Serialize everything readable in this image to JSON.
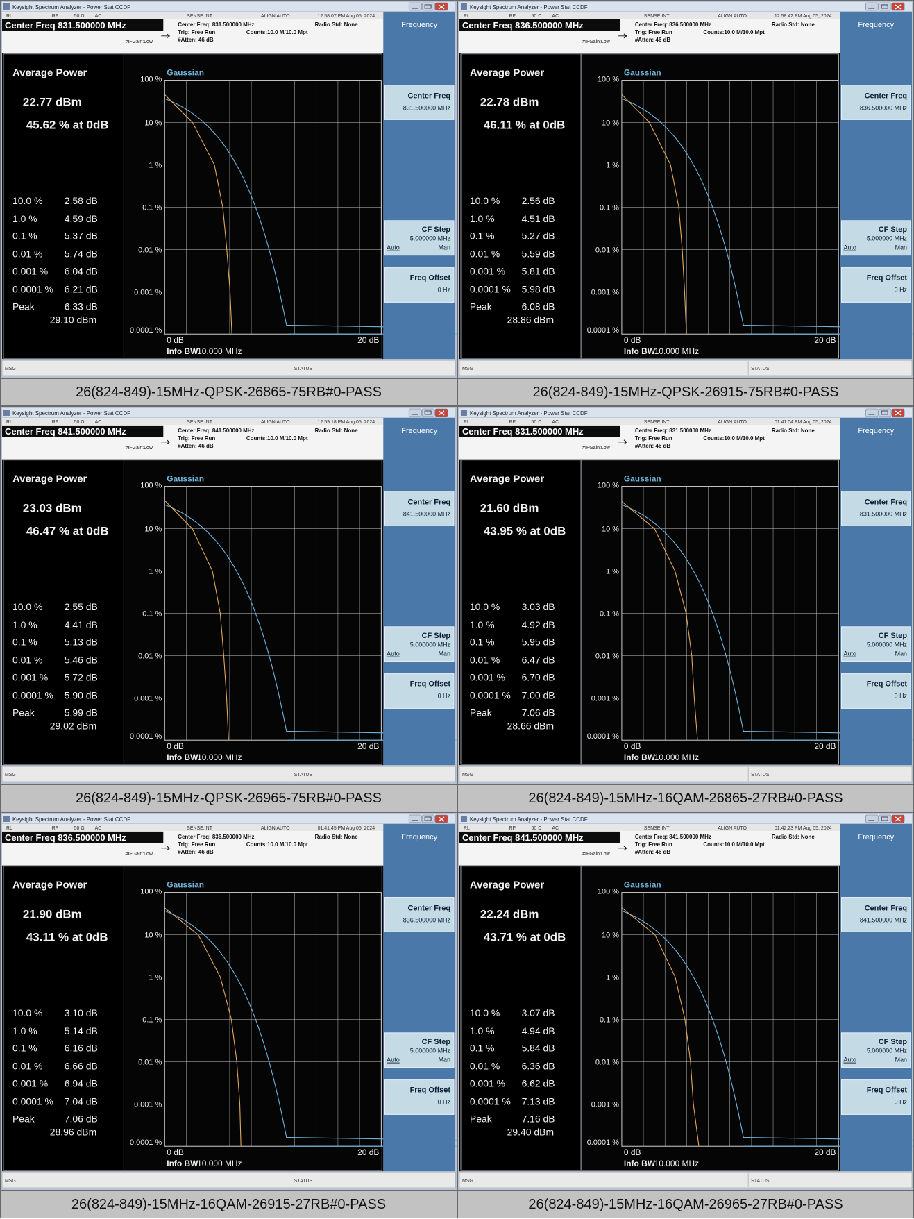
{
  "app": {
    "window_title": "Keysight Spectrum Analyzer - Power Stat CCDF",
    "rl": "RL",
    "rf": "RF",
    "imp": "50 Ω",
    "ac": "AC",
    "sense": "SENSE:INT",
    "align": "ALIGN AUTO",
    "radio_std": "Radio Std: None",
    "trig": "Trig: Free Run",
    "counts": "Counts:10.0 M/10.0 Mpt",
    "atten": "#Atten: 46 dB",
    "ifgain": "#IFGain:Low",
    "avg_power_label": "Average Power",
    "peak_label": "Peak",
    "gaussian_label": "Gaussian",
    "x_start": "0 dB",
    "x_end": "20 dB",
    "info_bw_label": "Info BW",
    "info_bw_value": "10.000 MHz",
    "msg": "MSG",
    "status": "STATUS",
    "y_ticks": [
      "100 %",
      "10 %",
      "1 %",
      "0.1 %",
      "0.01 %",
      "0.001 %",
      "0.0001 %"
    ],
    "prob_labels": [
      "10.0 %",
      "1.0 %",
      "0.1 %",
      "0.01 %",
      "0.001 %",
      "0.0001 %"
    ],
    "softkeys": {
      "menu_title": "Frequency",
      "center_freq": "Center Freq",
      "cf_step": "CF Step",
      "cf_step_value": "5.000000 MHz",
      "auto": "Auto",
      "man": "Man",
      "freq_offset": "Freq Offset",
      "freq_offset_value": "0 Hz"
    },
    "colors": {
      "screen_bg": "#050505",
      "gaussian": "#6fb4dc",
      "trace": "#e3a95a",
      "softkey_bg": "#4a78a8",
      "grid": "#c8c8c8"
    }
  },
  "panels": [
    {
      "center_freq": "831.500000 MHz",
      "center_freq_title": "Center Freq 831.500000 MHz",
      "center_freq_hdr": "Center Freq: 831.500000 MHz",
      "timestamp": "12:58:07 PM Aug 05, 2024",
      "avg_power": "22.77 dBm",
      "pct_at_0db": "45.62 % at 0dB",
      "stats": [
        "2.58 dB",
        "4.59 dB",
        "5.37 dB",
        "5.74 dB",
        "6.04 dB",
        "6.21 dB"
      ],
      "peak": "6.33 dB",
      "peak_dbm": "29.10 dBm",
      "caption": "26(824-849)-15MHz-QPSK-26865-75RB#0-PASS"
    },
    {
      "center_freq": "836.500000 MHz",
      "center_freq_title": "Center Freq 836.500000 MHz",
      "center_freq_hdr": "Center Freq: 836.500000 MHz",
      "timestamp": "12:58:42 PM Aug 05, 2024",
      "avg_power": "22.78 dBm",
      "pct_at_0db": "46.11 % at 0dB",
      "stats": [
        "2.56 dB",
        "4.51 dB",
        "5.27 dB",
        "5.59 dB",
        "5.81 dB",
        "5.98 dB"
      ],
      "peak": "6.08 dB",
      "peak_dbm": "28.86 dBm",
      "caption": "26(824-849)-15MHz-QPSK-26915-75RB#0-PASS"
    },
    {
      "center_freq": "841.500000 MHz",
      "center_freq_title": "Center Freq 841.500000 MHz",
      "center_freq_hdr": "Center Freq: 841.500000 MHz",
      "timestamp": "12:59:18 PM Aug 05, 2024",
      "avg_power": "23.03 dBm",
      "pct_at_0db": "46.47 % at 0dB",
      "stats": [
        "2.55 dB",
        "4.41 dB",
        "5.13 dB",
        "5.46 dB",
        "5.72 dB",
        "5.90 dB"
      ],
      "peak": "5.99 dB",
      "peak_dbm": "29.02 dBm",
      "caption": "26(824-849)-15MHz-QPSK-26965-75RB#0-PASS"
    },
    {
      "center_freq": "831.500000 MHz",
      "center_freq_title": "Center Freq 831.500000 MHz",
      "center_freq_hdr": "Center Freq: 831.500000 MHz",
      "timestamp": "01:41:04 PM Aug 05, 2024",
      "avg_power": "21.60 dBm",
      "pct_at_0db": "43.95 % at 0dB",
      "stats": [
        "3.03 dB",
        "4.92 dB",
        "5.95 dB",
        "6.47 dB",
        "6.70 dB",
        "7.00 dB"
      ],
      "peak": "7.06 dB",
      "peak_dbm": "28.66 dBm",
      "caption": "26(824-849)-15MHz-16QAM-26865-27RB#0-PASS"
    },
    {
      "center_freq": "836.500000 MHz",
      "center_freq_title": "Center Freq 836.500000 MHz",
      "center_freq_hdr": "Center Freq: 836.500000 MHz",
      "timestamp": "01:41:45 PM Aug 05, 2024",
      "avg_power": "21.90 dBm",
      "pct_at_0db": "43.11 % at 0dB",
      "stats": [
        "3.10 dB",
        "5.14 dB",
        "6.16 dB",
        "6.66 dB",
        "6.94 dB",
        "7.04 dB"
      ],
      "peak": "7.06 dB",
      "peak_dbm": "28.96 dBm",
      "caption": "26(824-849)-15MHz-16QAM-26915-27RB#0-PASS"
    },
    {
      "center_freq": "841.500000 MHz",
      "center_freq_title": "Center Freq 841.500000 MHz",
      "center_freq_hdr": "Center Freq: 841.500000 MHz",
      "timestamp": "01:42:23 PM Aug 05, 2024",
      "avg_power": "22.24 dBm",
      "pct_at_0db": "43.71 % at 0dB",
      "stats": [
        "3.07 dB",
        "4.94 dB",
        "5.84 dB",
        "6.36 dB",
        "6.62 dB",
        "7.13 dB"
      ],
      "peak": "7.16 dB",
      "peak_dbm": "29.40 dBm",
      "caption": "26(824-849)-15MHz-16QAM-26965-27RB#0-PASS"
    }
  ]
}
